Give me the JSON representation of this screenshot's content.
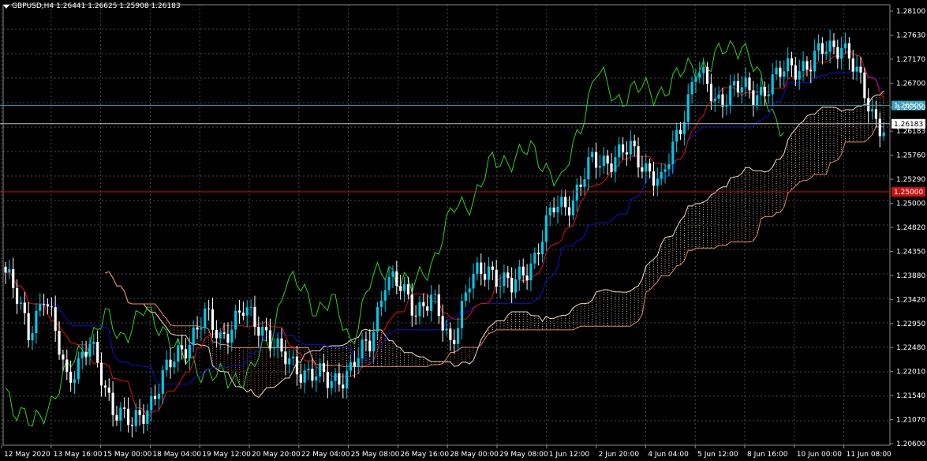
{
  "header": {
    "symbol": "GBPUSD,H4",
    "ohlc": "1.26441 1.26625 1.25908 1.26183"
  },
  "colors": {
    "background": "#000000",
    "grid": "#4a4a4a",
    "bull_candle": "#00c8e8",
    "bear_candle": "#ffffff",
    "tenkan": "#e01010",
    "kijun": "#1010c8",
    "chikou": "#30d020",
    "cloud_bull": "#f0d8c0",
    "cloud_bear": "#e08860",
    "level_blue": "#3aa0b8",
    "level_red": "#d01010"
  },
  "price_axis": {
    "labels": [
      "1.28100",
      "1.27630",
      "1.27170",
      "1.26700",
      "1.26500",
      "1.26183",
      "1.25760",
      "1.25290",
      "1.25000",
      "1.24820",
      "1.24350",
      "1.23880",
      "1.23420",
      "1.22950",
      "1.22480",
      "1.22010",
      "1.21540",
      "1.21070",
      "1.20600"
    ]
  },
  "time_axis": {
    "labels": [
      "12 May 2020",
      "13 May 16:00",
      "15 May 00:00",
      "18 May 04:00",
      "19 May 12:00",
      "20 May 20:00",
      "22 May 04:00",
      "25 May 08:00",
      "26 May 16:00",
      "28 May 00:00",
      "29 May 08:00",
      "1 Jun 12:00",
      "2 Jun 20:00",
      "4 Jun 04:00",
      "5 Jun 12:00",
      "8 Jun 16:00",
      "10 Jun 00:00",
      "11 Jun 08:00"
    ]
  },
  "horizontal_levels": [
    {
      "price": 1.265,
      "label": "1.26500",
      "style": "blue"
    },
    {
      "price": 1.25,
      "label": "1.25000",
      "style": "red"
    }
  ],
  "chart_data": {
    "type": "candlestick",
    "symbol": "GBPUSD",
    "timeframe": "H4",
    "ylim": [
      1.206,
      1.2825
    ],
    "ohlc_visible_last": {
      "open": 1.26441,
      "high": 1.26625,
      "low": 1.25908,
      "close": 1.26183
    },
    "anchor_closes": [
      [
        0,
        1.236
      ],
      [
        6,
        1.226
      ],
      [
        10,
        1.232
      ],
      [
        16,
        1.218
      ],
      [
        22,
        1.223
      ],
      [
        28,
        1.213
      ],
      [
        33,
        1.209
      ],
      [
        38,
        1.214
      ],
      [
        45,
        1.222
      ],
      [
        52,
        1.228
      ],
      [
        56,
        1.225
      ],
      [
        62,
        1.229
      ],
      [
        68,
        1.226
      ],
      [
        72,
        1.221
      ],
      [
        78,
        1.219
      ],
      [
        84,
        1.217
      ],
      [
        90,
        1.219
      ],
      [
        95,
        1.224
      ],
      [
        99,
        1.235
      ],
      [
        103,
        1.233
      ],
      [
        107,
        1.23
      ],
      [
        111,
        1.231
      ],
      [
        116,
        1.224
      ],
      [
        121,
        1.234
      ],
      [
        126,
        1.237
      ],
      [
        132,
        1.233
      ],
      [
        138,
        1.239
      ],
      [
        143,
        1.247
      ],
      [
        148,
        1.249
      ],
      [
        153,
        1.255
      ],
      [
        158,
        1.256
      ],
      [
        163,
        1.257
      ],
      [
        168,
        1.254
      ],
      [
        171,
        1.251
      ],
      [
        176,
        1.262
      ],
      [
        180,
        1.271
      ],
      [
        185,
        1.266
      ],
      [
        190,
        1.268
      ],
      [
        195,
        1.267
      ],
      [
        200,
        1.269
      ],
      [
        205,
        1.272
      ],
      [
        210,
        1.272
      ],
      [
        214,
        1.275
      ],
      [
        218,
        1.276
      ],
      [
        222,
        1.27
      ],
      [
        226,
        1.264
      ],
      [
        229,
        1.261
      ]
    ]
  }
}
